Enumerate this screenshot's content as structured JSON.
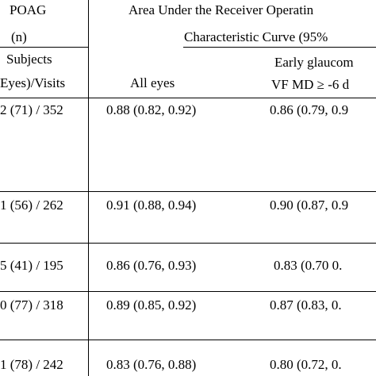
{
  "header": {
    "col1_line1": "POAG",
    "col1_line2": "(n)",
    "auc_line1": "Area Under the Receiver Operatin",
    "auc_line2": "Characteristic Curve  (95%",
    "subjects_line1": "Subjects",
    "subjects_line2": "Eyes)/Visits",
    "all_eyes": "All eyes",
    "early_line1": "Early glaucom",
    "early_line2": "VF MD ≥ -6 d"
  },
  "rows": [
    {
      "n": "2 (71) / 352",
      "all": "0.88 (0.82, 0.92)",
      "early": "0.86 (0.79, 0.9"
    },
    {
      "n": "1 (56) / 262",
      "all": "0.91 (0.88, 0.94)",
      "early": "0.90 (0.87, 0.9"
    },
    {
      "n": "5 (41) / 195",
      "all": "0.86 (0.76, 0.93)",
      "early": "0.83 (0.70 0."
    },
    {
      "n": "0 (77) / 318",
      "all": "0.89 (0.85, 0.92)",
      "early": "0.87 (0.83, 0."
    },
    {
      "n": "1 (78) / 242",
      "all": "0.83 (0.76, 0.88)",
      "early": "0.80 (0.72, 0."
    }
  ]
}
